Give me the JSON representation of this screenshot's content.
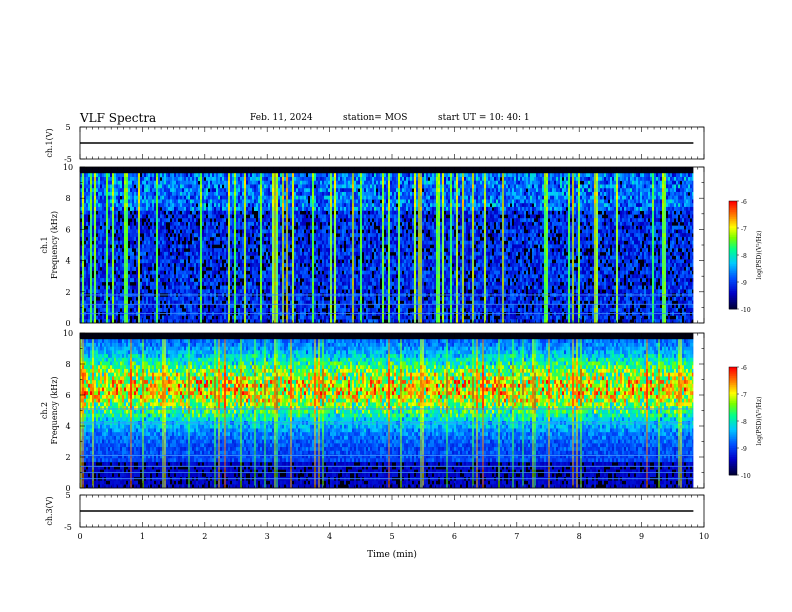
{
  "header": {
    "title": "VLF Spectra",
    "date": "Feb. 11, 2024",
    "station": "station= MOS",
    "start_ut": "start  UT =   10: 40: 1"
  },
  "colorbar": {
    "ticks": [
      "-6",
      "-7",
      "-8",
      "-9",
      "-10"
    ],
    "label": "log(PSD)(V²/Hz)",
    "colors": [
      "#000080",
      "#0000ff",
      "#00a0ff",
      "#00ffff",
      "#00ff80",
      "#80ff00",
      "#ffff00",
      "#ff8000",
      "#ff0000",
      "#ffffff"
    ]
  },
  "chart_data": [
    {
      "type": "line",
      "ylabel": "ch.1(V)",
      "ylim": [
        -5,
        5
      ],
      "ytick_labels": [
        "5",
        "-5"
      ],
      "series": [
        {
          "x": [
            0,
            9.83
          ],
          "y": [
            0,
            0
          ]
        }
      ]
    },
    {
      "type": "heatmap",
      "ylabel": "ch.1  Frequency (kHz)",
      "ylim": [
        0,
        10
      ],
      "xlim": [
        0,
        10
      ],
      "ytick_labels": [
        "0",
        "2",
        "4",
        "6",
        "8",
        "10"
      ],
      "data_x_max": 9.83,
      "z_range": [
        -10,
        -6
      ],
      "features": {
        "persistent_lines_khz": [
          0.6,
          1.2,
          1.8
        ],
        "band_top_khz": 9.6,
        "red_intensity": 0.25
      }
    },
    {
      "type": "heatmap",
      "ylabel": "ch.2  Frequency (kHz)",
      "ylim": [
        0,
        10
      ],
      "xlim": [
        0,
        10
      ],
      "ytick_labels": [
        "0",
        "2",
        "4",
        "6",
        "8",
        "10"
      ],
      "data_x_max": 9.83,
      "z_range": [
        -10,
        -6
      ],
      "features": {
        "persistent_lines_khz": [
          0.6,
          1.0,
          1.4,
          2.1,
          4.2,
          5.1
        ],
        "band_top_khz": 9.6,
        "red_intensity": 0.8
      }
    },
    {
      "type": "line",
      "ylabel": "ch.3(V)",
      "xlabel": "Time  (min)",
      "ylim": [
        -5,
        5
      ],
      "ytick_labels": [
        "5",
        "-5"
      ],
      "xlim": [
        0,
        10
      ],
      "xtick_labels": [
        "0",
        "1",
        "2",
        "3",
        "4",
        "5",
        "6",
        "7",
        "8",
        "9",
        "10"
      ],
      "series": [
        {
          "x": [
            0,
            9.83
          ],
          "y": [
            0,
            0
          ]
        }
      ]
    }
  ]
}
